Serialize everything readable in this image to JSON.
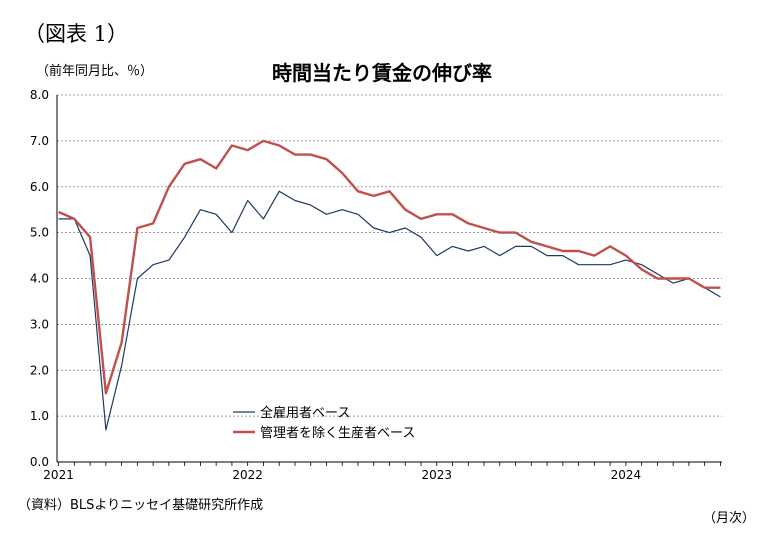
{
  "figure_label": "（図表 1）",
  "chart_data": {
    "type": "line",
    "title": "時間当たり賃金の伸び率",
    "ylabel": "（前年同月比、％）",
    "xlabel": "（月次）",
    "source": "（資料）BLSよりニッセイ基礎研究所作成",
    "ylim": [
      0,
      8
    ],
    "yticks": [
      "0.0",
      "1.0",
      "2.0",
      "3.0",
      "4.0",
      "5.0",
      "6.0",
      "7.0",
      "8.0"
    ],
    "xticks": [
      "2021",
      "2022",
      "2023",
      "2024"
    ],
    "legend_position": "bottom-left-inside",
    "grid": "horizontal-dashed",
    "x": [
      "2021-01",
      "2021-02",
      "2021-03",
      "2021-04",
      "2021-05",
      "2021-06",
      "2021-07",
      "2021-08",
      "2021-09",
      "2021-10",
      "2021-11",
      "2021-12",
      "2022-01",
      "2022-02",
      "2022-03",
      "2022-04",
      "2022-05",
      "2022-06",
      "2022-07",
      "2022-08",
      "2022-09",
      "2022-10",
      "2022-11",
      "2022-12",
      "2023-01",
      "2023-02",
      "2023-03",
      "2023-04",
      "2023-05",
      "2023-06",
      "2023-07",
      "2023-08",
      "2023-09",
      "2023-10",
      "2023-11",
      "2023-12",
      "2024-01",
      "2024-02",
      "2024-03",
      "2024-04",
      "2024-05",
      "2024-06",
      "2024-07"
    ],
    "series": [
      {
        "name": "全雇用者ベース",
        "color": "#1f3864",
        "width": 1.2,
        "values": [
          5.3,
          5.3,
          4.5,
          0.7,
          2.1,
          4.0,
          4.3,
          4.4,
          4.9,
          5.5,
          5.4,
          5.0,
          5.7,
          5.3,
          5.9,
          5.7,
          5.6,
          5.4,
          5.5,
          5.4,
          5.1,
          5.0,
          5.1,
          4.9,
          4.5,
          4.7,
          4.6,
          4.7,
          4.5,
          4.7,
          4.7,
          4.5,
          4.5,
          4.3,
          4.3,
          4.3,
          4.4,
          4.3,
          4.1,
          3.9,
          4.0,
          3.8,
          3.6
        ]
      },
      {
        "name": "管理者を除く生産者ベース",
        "color": "#c0504d",
        "width": 2.4,
        "values": [
          5.45,
          5.3,
          4.9,
          1.5,
          2.6,
          5.1,
          5.2,
          6.0,
          6.5,
          6.6,
          6.4,
          6.9,
          6.8,
          7.0,
          6.9,
          6.7,
          6.7,
          6.6,
          6.3,
          5.9,
          5.8,
          5.9,
          5.5,
          5.3,
          5.4,
          5.4,
          5.2,
          5.1,
          5.0,
          5.0,
          4.8,
          4.7,
          4.6,
          4.6,
          4.5,
          4.7,
          4.5,
          4.2,
          4.0,
          4.0,
          4.0,
          3.8,
          3.8
        ]
      }
    ]
  }
}
